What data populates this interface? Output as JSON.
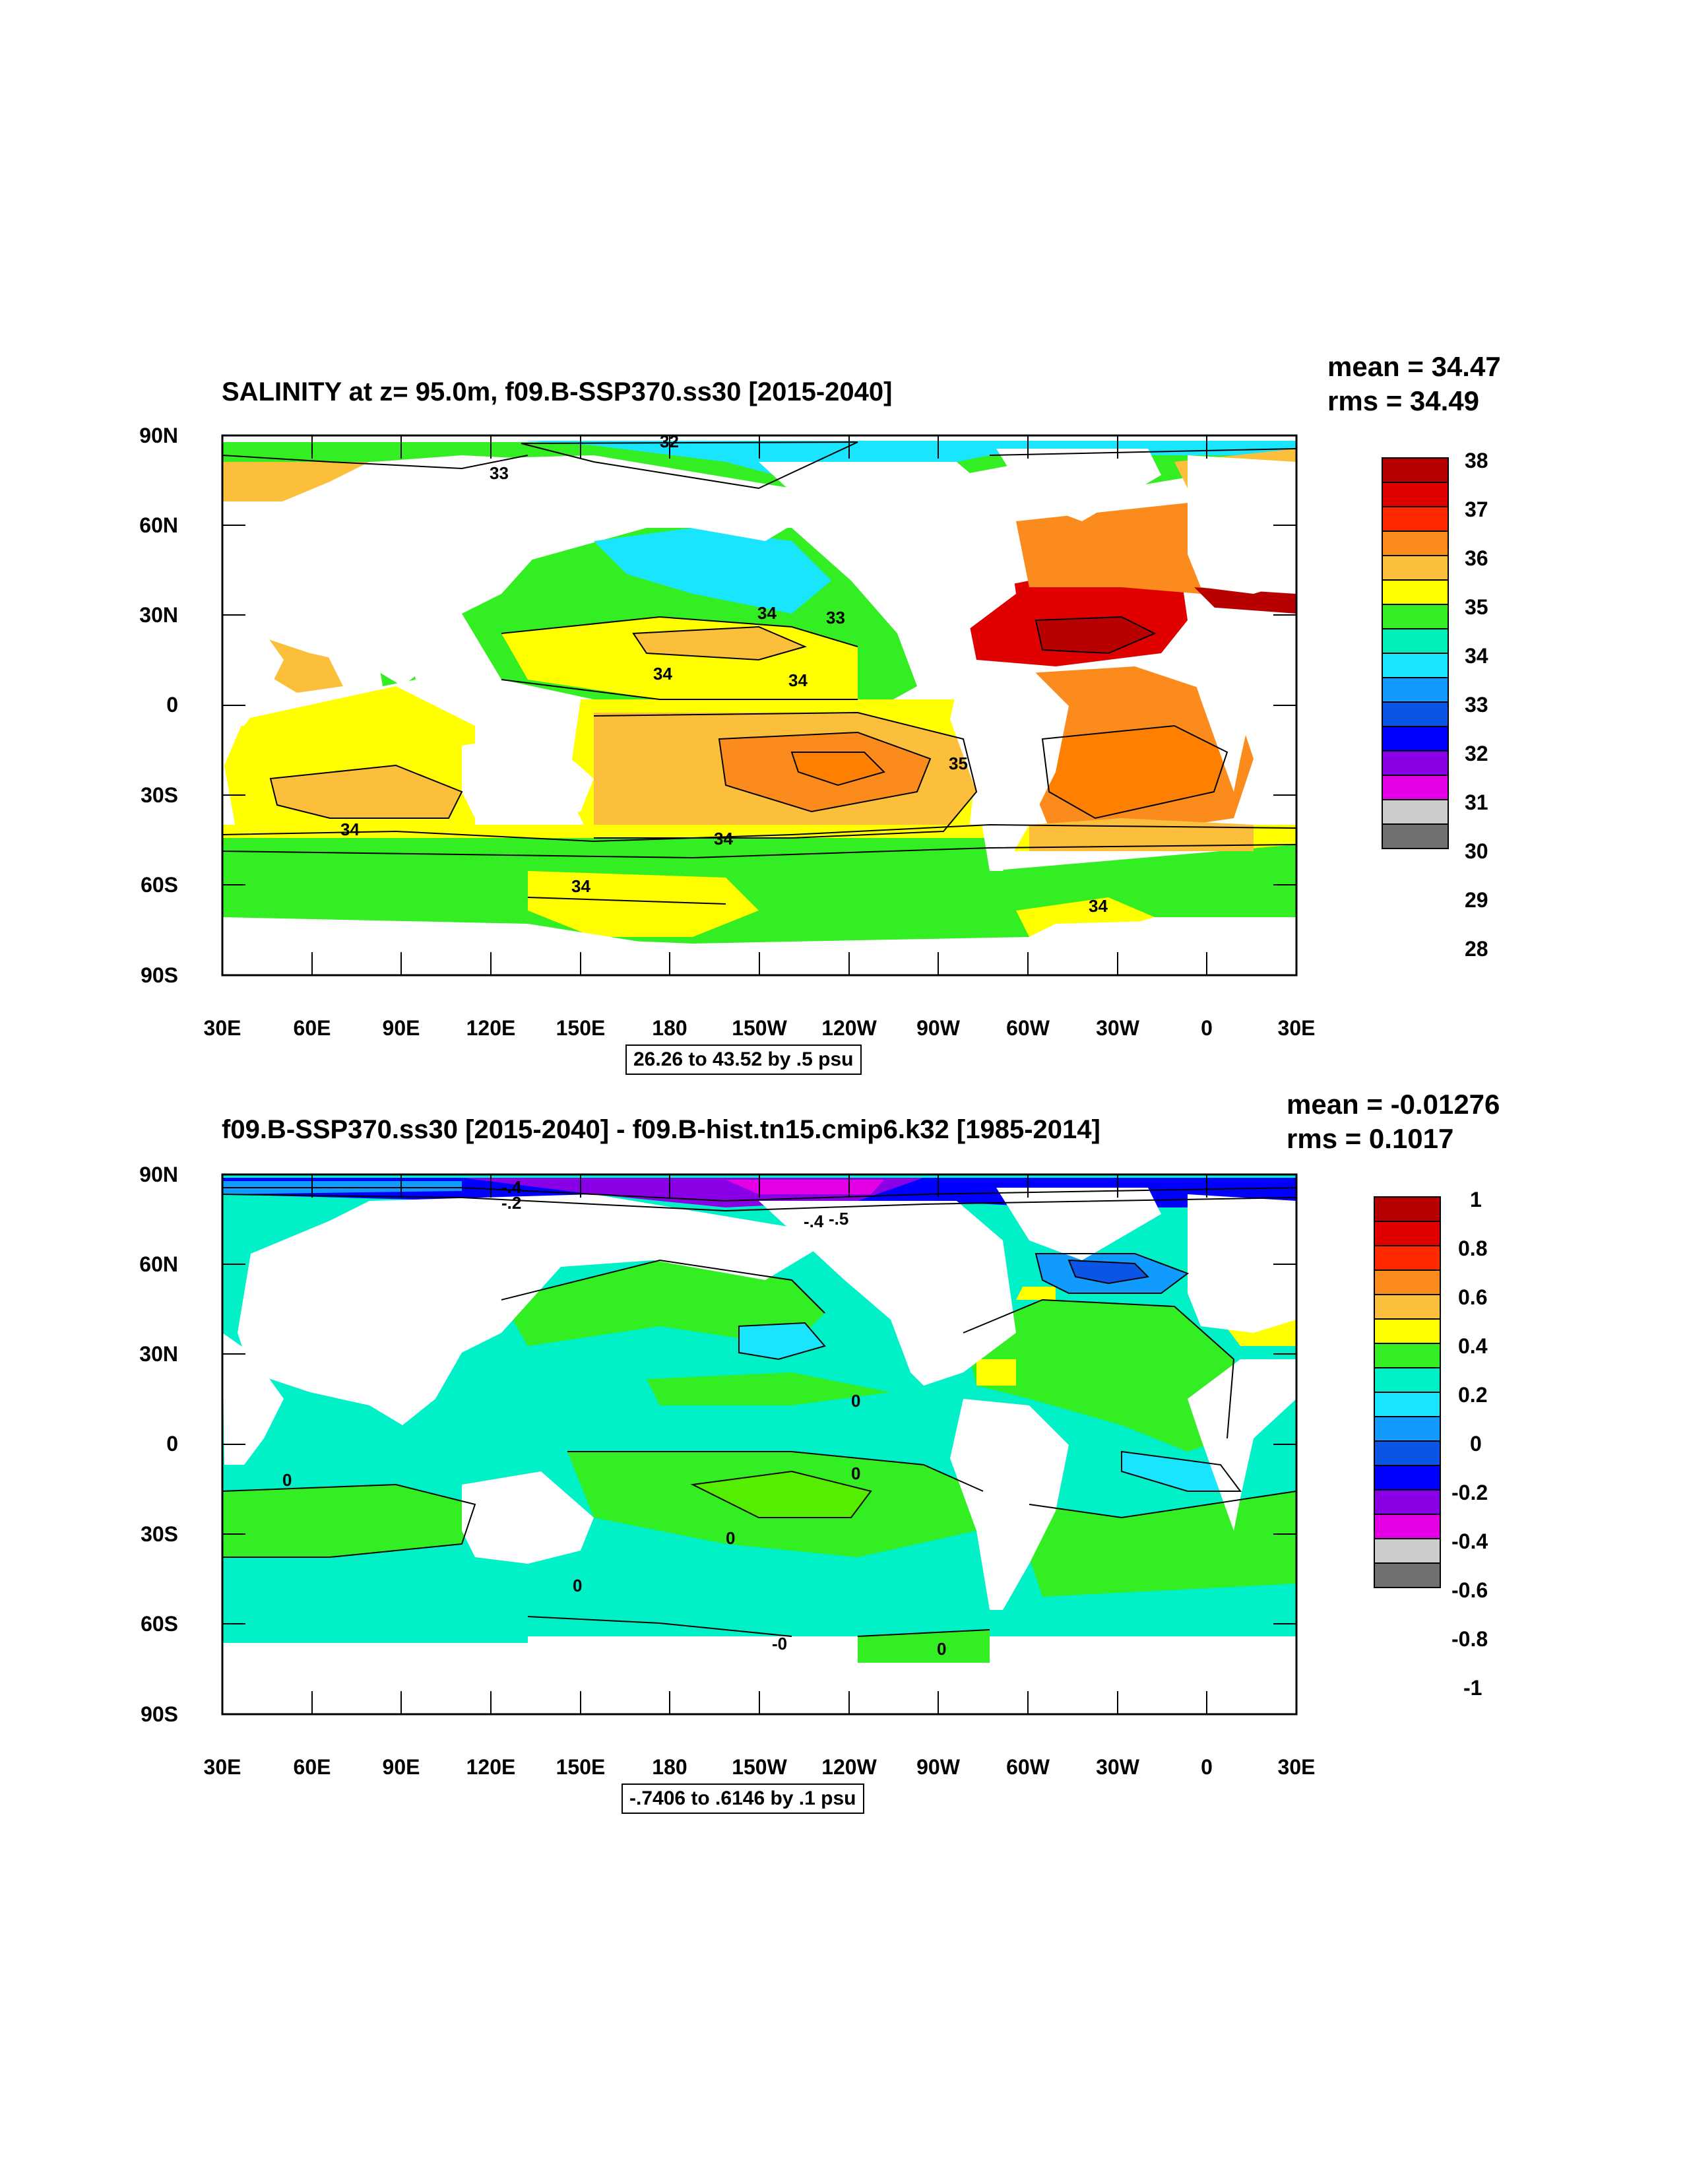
{
  "panels": [
    {
      "id": "top",
      "title": "SALINITY at z=  95.0m, f09.B-SSP370.ss30 [2015-2040]",
      "stats": {
        "mean": "mean = 34.47",
        "rms": "rms = 34.49"
      },
      "range_label": "26.26 to 43.52 by .5 psu",
      "y_ticks": [
        "90N",
        "60N",
        "30N",
        "0",
        "30S",
        "60S",
        "90S"
      ],
      "x_ticks": [
        "30E",
        "60E",
        "90E",
        "120E",
        "150E",
        "180",
        "150W",
        "120W",
        "90W",
        "60W",
        "30W",
        "0",
        "30E"
      ],
      "colorbar": {
        "labels": [
          "38",
          "37",
          "36",
          "35",
          "34",
          "33",
          "32",
          "31",
          "30",
          "29",
          "28"
        ],
        "colors": [
          "#b80000",
          "#e00000",
          "#ff2a00",
          "#fb8b1c",
          "#fcbf3c",
          "#ffff00",
          "#33ee22",
          "#00f0b8",
          "#19e5ff",
          "#119bff",
          "#0a55e6",
          "#0000ff",
          "#8a00e6",
          "#e400e4",
          "#cccccc",
          "#707070"
        ]
      },
      "contour_labels": [
        "32",
        "33",
        "34",
        "33",
        "34",
        "34",
        "35",
        "34",
        "34",
        "34",
        "34",
        "34"
      ]
    },
    {
      "id": "bottom",
      "title": "f09.B-SSP370.ss30 [2015-2040] - f09.B-hist.tn15.cmip6.k32 [1985-2014]",
      "stats": {
        "mean": "mean = -0.01276",
        "rms": "rms = 0.1017"
      },
      "range_label": "-.7406 to .6146 by .1 psu",
      "y_ticks": [
        "90N",
        "60N",
        "30N",
        "0",
        "30S",
        "60S",
        "90S"
      ],
      "x_ticks": [
        "30E",
        "60E",
        "90E",
        "120E",
        "150E",
        "180",
        "150W",
        "120W",
        "90W",
        "60W",
        "30W",
        "0",
        "30E"
      ],
      "colorbar": {
        "labels": [
          "1",
          "0.8",
          "0.6",
          "0.4",
          "0.2",
          "0",
          "-0.2",
          "-0.4",
          "-0.6",
          "-0.8",
          "-1"
        ],
        "colors": [
          "#b80000",
          "#e00000",
          "#ff2a00",
          "#fb8b1c",
          "#fcbf3c",
          "#ffff00",
          "#33ee22",
          "#00f0c8",
          "#19e5ff",
          "#119bff",
          "#0a55e6",
          "#0000ff",
          "#8a00e6",
          "#e400e4",
          "#cccccc",
          "#707070"
        ]
      },
      "contour_labels": [
        "-.4",
        "-.2",
        "-.4",
        "-.5",
        "0",
        "0",
        "0",
        "0",
        "0",
        "0",
        "0",
        "-0",
        "0"
      ]
    }
  ]
}
